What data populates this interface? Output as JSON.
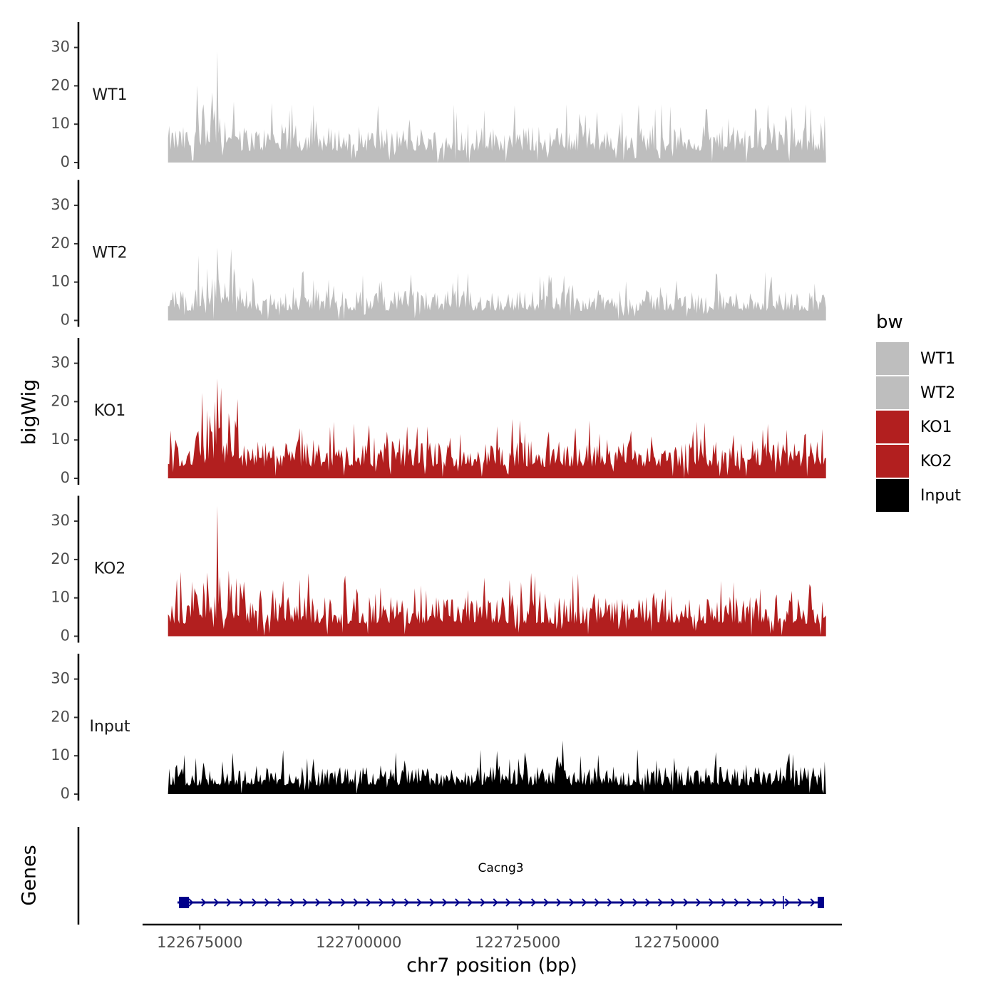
{
  "chart_data": {
    "type": "area",
    "ylabel": "bigWig",
    "xlabel": "chr7 position (bp)",
    "xlim": [
      122666000,
      122776000
    ],
    "region": [
      122670000,
      122773500
    ],
    "ylim": [
      0,
      37
    ],
    "yticks": [
      0,
      10,
      20,
      30
    ],
    "xticks": [
      {
        "value": 122675000,
        "label": "122675000"
      },
      {
        "value": 122700000,
        "label": "122700000"
      },
      {
        "value": 122725000,
        "label": "122725000"
      },
      {
        "value": 122750000,
        "label": "122750000"
      }
    ],
    "tracks": [
      {
        "name": "WT1",
        "color": "#bebebe",
        "max": 29,
        "typical_peak": 12
      },
      {
        "name": "WT2",
        "color": "#bebebe",
        "max": 19,
        "typical_peak": 10
      },
      {
        "name": "KO1",
        "color": "#b21f1f",
        "max": 26,
        "typical_peak": 12
      },
      {
        "name": "KO2",
        "color": "#b21f1f",
        "max": 34,
        "typical_peak": 13
      },
      {
        "name": "Input",
        "color": "#000000",
        "max": 14,
        "typical_peak": 9
      }
    ],
    "legend": {
      "title": "bw",
      "position": "right",
      "entries": [
        {
          "label": "WT1",
          "color": "#bebebe"
        },
        {
          "label": "WT2",
          "color": "#bebebe"
        },
        {
          "label": "KO1",
          "color": "#b21f1f"
        },
        {
          "label": "KO2",
          "color": "#b21f1f"
        },
        {
          "label": "Input",
          "color": "#000000"
        }
      ]
    },
    "genes_panel": {
      "label": "Genes",
      "gene": {
        "name": "Cacng3",
        "start": 122671500,
        "end": 122773200,
        "strand": "+",
        "color": "#00008b"
      }
    }
  }
}
